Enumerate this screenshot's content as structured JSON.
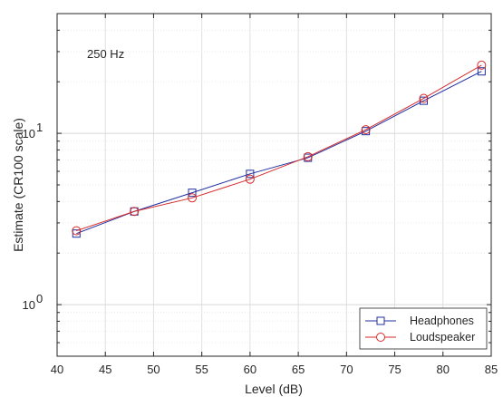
{
  "chart_data": {
    "type": "line",
    "title": "",
    "annotation": "250 Hz",
    "xlabel": "Level (dB)",
    "ylabel": "Estimate (CR100 scale)",
    "xlim": [
      40,
      85
    ],
    "xticks": [
      40,
      45,
      50,
      55,
      60,
      65,
      70,
      75,
      80,
      85
    ],
    "xtick_labels": [
      "40",
      "45",
      "50",
      "55",
      "60",
      "65",
      "70",
      "75",
      "80",
      "85"
    ],
    "yscale": "log",
    "ylim": [
      0.5,
      50
    ],
    "ytick_labels": [
      {
        "value": 1,
        "base": "10",
        "exp": "0"
      },
      {
        "value": 10,
        "base": "10",
        "exp": "1"
      }
    ],
    "grid": true,
    "legend_position": "bottom-right",
    "x": [
      42,
      48,
      54,
      60,
      66,
      72,
      78,
      84
    ],
    "series": [
      {
        "name": "Headphones",
        "marker": "square",
        "color": "#1f2fa0",
        "values": [
          2.6,
          3.5,
          4.5,
          5.8,
          7.2,
          10.3,
          15.5,
          23.0
        ]
      },
      {
        "name": "Loudspeaker",
        "marker": "circle",
        "color": "#d62b2b",
        "values": [
          2.7,
          3.5,
          4.2,
          5.4,
          7.3,
          10.5,
          16.0,
          25.0
        ]
      }
    ]
  }
}
